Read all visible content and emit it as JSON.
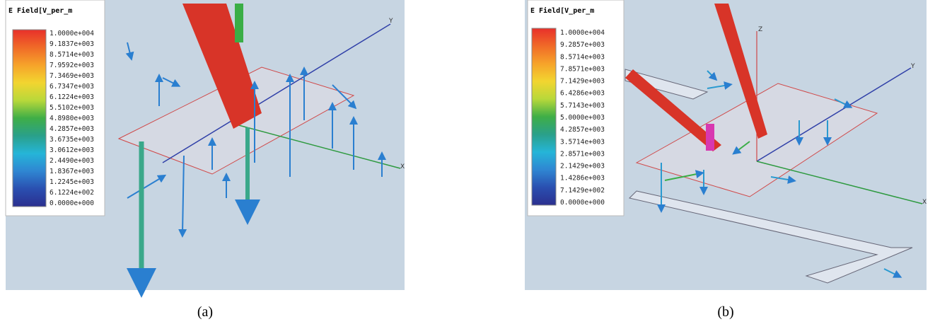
{
  "panels": [
    {
      "legend": {
        "title": "E Field[V_per_m",
        "labels": [
          "1.0000e+004",
          "9.1837e+003",
          "8.5714e+003",
          "7.9592e+003",
          "7.3469e+003",
          "6.7347e+003",
          "6.1224e+003",
          "5.5102e+003",
          "4.8980e+003",
          "4.2857e+003",
          "3.6735e+003",
          "3.0612e+003",
          "2.4490e+003",
          "1.8367e+003",
          "1.2245e+003",
          "6.1224e+002",
          "0.0000e+000"
        ],
        "colors": [
          "#e8302a",
          "#f06a28",
          "#f6a32a",
          "#f2d530",
          "#b8d83a",
          "#3fae47",
          "#2aa08a",
          "#25b5d8",
          "#2f86d2",
          "#2a4fb0",
          "#2b2f8f"
        ]
      },
      "axes": [
        "Y",
        "X"
      ],
      "caption": "(a)"
    },
    {
      "legend": {
        "title": "E Field[V_per_m",
        "labels": [
          "1.0000e+004",
          "9.2857e+003",
          "8.5714e+003",
          "7.8571e+003",
          "7.1429e+003",
          "6.4286e+003",
          "5.7143e+003",
          "5.0000e+003",
          "4.2857e+003",
          "3.5714e+003",
          "2.8571e+003",
          "2.1429e+003",
          "1.4286e+003",
          "7.1429e+002",
          "0.0000e+000"
        ],
        "colors": [
          "#e8302a",
          "#f06a28",
          "#f6a32a",
          "#f2d530",
          "#b8d83a",
          "#3fae47",
          "#2aa08a",
          "#25b5d8",
          "#2f86d2",
          "#2a4fb0",
          "#2b2f8f"
        ]
      },
      "axes": [
        "Z",
        "Y",
        "X"
      ],
      "caption": "(b)"
    }
  ]
}
